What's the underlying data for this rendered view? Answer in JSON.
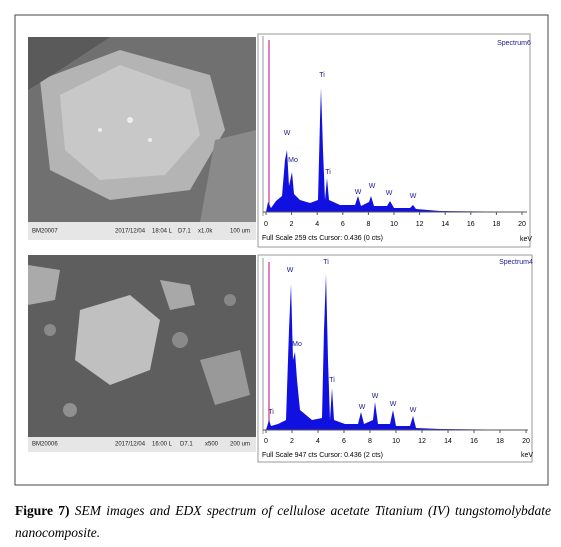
{
  "panels": [
    {
      "sem": {
        "id": "BM20007",
        "date": "2017/12/04",
        "time": "18:04 L",
        "setting": "D7.1",
        "magnification": "x1.0k",
        "scale": "100 um"
      },
      "spectrum": {
        "name": "Spectrum6",
        "xlim": [
          0,
          20
        ],
        "xticks": [
          0,
          2,
          4,
          6,
          8,
          10,
          12,
          14,
          16,
          18,
          20
        ],
        "x_unit": "keV",
        "footer": "Full Scale 259 cts Cursor: 0.436 (0 cts)",
        "peak_labels": [
          "W",
          "Mo",
          "Ti",
          "Ti",
          "W",
          "W",
          "W",
          "W"
        ]
      }
    },
    {
      "sem": {
        "id": "BM20006",
        "date": "2017/12/04",
        "time": "16:00 L",
        "setting": "D7.1",
        "magnification": "x500",
        "scale": "200 um"
      },
      "spectrum": {
        "name": "Spectrum4",
        "xlim": [
          0,
          20
        ],
        "xticks": [
          0,
          2,
          4,
          6,
          8,
          10,
          12,
          14,
          16,
          18,
          20
        ],
        "x_unit": "keV",
        "footer": "Full Scale 947 cts Cursor: 0.436 (2 cts)",
        "peak_labels": [
          "Ti",
          "W",
          "Mo",
          "Ti",
          "Ti",
          "W",
          "W",
          "W",
          "W"
        ]
      }
    }
  ],
  "caption": {
    "label": "Figure 7)",
    "text": "SEM images and EDX spectrum of cellulose acetate Titanium (IV) tungstomolybdate nanocomposite."
  }
}
